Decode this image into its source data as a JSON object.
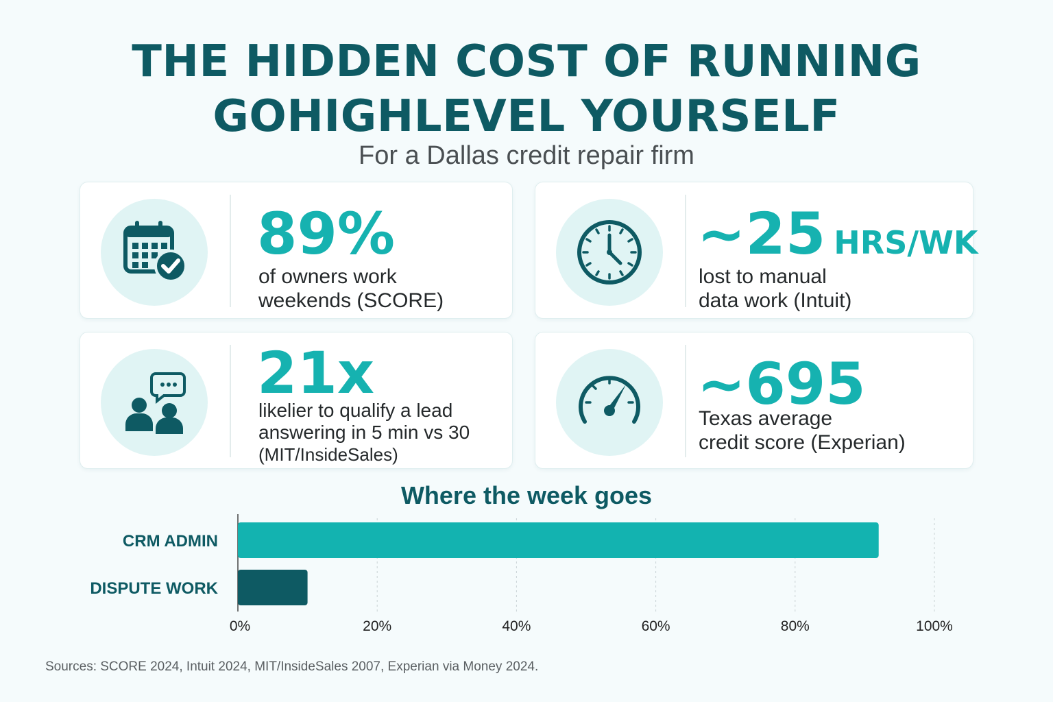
{
  "title": {
    "line1": "THE HIDDEN COST OF RUNNING",
    "line2": "GOHIGHLEVEL YOURSELF"
  },
  "subtitle": "For a Dallas credit repair firm",
  "stats": [
    {
      "value": "89%",
      "unit": "",
      "desc": [
        "of owners work",
        "weekends (SCORE)"
      ],
      "icon": "calendar-check-icon"
    },
    {
      "value": "~25",
      "unit": "HRS/WK",
      "desc": [
        "lost to manual",
        "data work (Intuit)"
      ],
      "icon": "clock-icon"
    },
    {
      "value": "21x",
      "unit": "",
      "desc": [
        "likelier to qualify a lead",
        "answering in 5 min vs 30",
        "(MIT/InsideSales)"
      ],
      "icon": "people-chat-icon"
    },
    {
      "value": "~695",
      "unit": "",
      "desc": [
        "Texas average",
        "credit score (Experian)"
      ],
      "icon": "gauge-icon"
    }
  ],
  "colors": {
    "accent": "#16b2b0",
    "dark": "#0e5a63",
    "bar_primary": "#13b3b0",
    "bar_secondary": "#0e5a63"
  },
  "chart_data": {
    "type": "bar",
    "orientation": "horizontal",
    "title": "Where the week goes",
    "categories": [
      "CRM ADMIN",
      "DISPUTE WORK"
    ],
    "values": [
      92,
      10
    ],
    "xlim": [
      0,
      100
    ],
    "xticks": [
      "0%",
      "20%",
      "40%",
      "60%",
      "80%",
      "100%"
    ],
    "tick_values": [
      0,
      20,
      40,
      60,
      80,
      100
    ],
    "grid": true
  },
  "footer": "Sources: SCORE 2024, Intuit 2024, MIT/InsideSales 2007, Experian via Money 2024."
}
